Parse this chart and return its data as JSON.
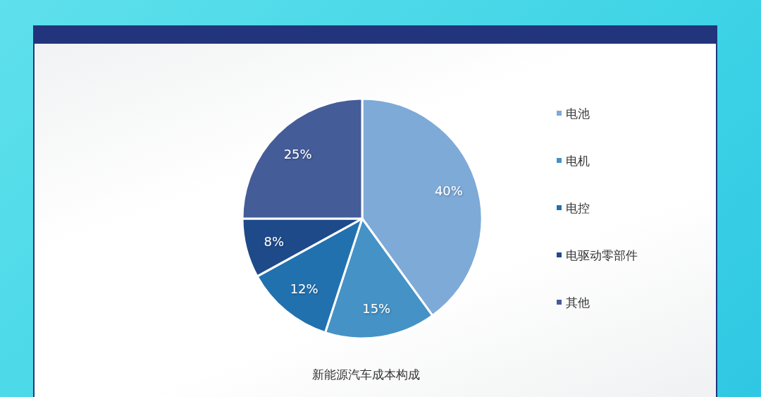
{
  "chart_data": {
    "type": "pie",
    "title": "新能源汽车成本构成",
    "categories": [
      "电池",
      "电机",
      "电控",
      "电驱动零部件",
      "其他"
    ],
    "values": [
      40,
      15,
      12,
      8,
      25
    ],
    "colors": [
      "#7eaad8",
      "#4592c6",
      "#2171ae",
      "#1e4a8a",
      "#445c98"
    ],
    "value_labels": [
      "40%",
      "15%",
      "12%",
      "8%",
      "25%"
    ],
    "legend": "right"
  }
}
